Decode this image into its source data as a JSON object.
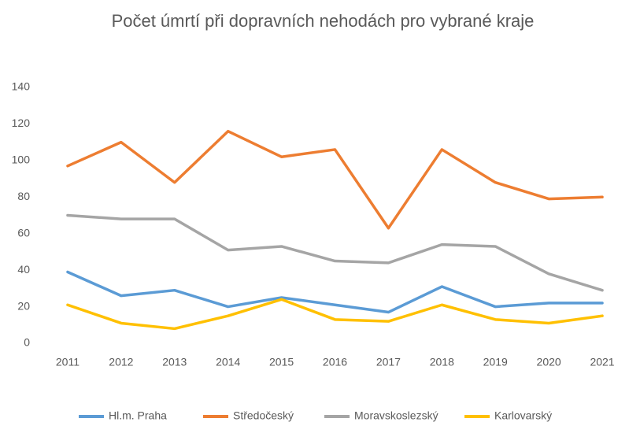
{
  "chart_data": {
    "type": "line",
    "title": "Počet úmrtí při dopravních nehodách pro vybrané kraje",
    "categories": [
      "2011",
      "2012",
      "2013",
      "2014",
      "2015",
      "2016",
      "2017",
      "2018",
      "2019",
      "2020",
      "2021"
    ],
    "series": [
      {
        "name": "Hl.m. Praha",
        "color": "#5b9bd5",
        "values": [
          39,
          26,
          29,
          20,
          25,
          21,
          17,
          31,
          20,
          22,
          22
        ]
      },
      {
        "name": "Středočeský",
        "color": "#ed7d31",
        "values": [
          97,
          110,
          88,
          116,
          102,
          106,
          63,
          106,
          88,
          79,
          80
        ]
      },
      {
        "name": "Moravskoslezský",
        "color": "#a5a5a5",
        "values": [
          70,
          68,
          68,
          51,
          53,
          45,
          44,
          54,
          53,
          38,
          29
        ]
      },
      {
        "name": "Karlovarský",
        "color": "#ffc000",
        "values": [
          21,
          11,
          8,
          15,
          24,
          13,
          12,
          21,
          13,
          11,
          15
        ]
      }
    ],
    "ylim": [
      0,
      140
    ],
    "yticks": [
      0,
      20,
      40,
      60,
      80,
      100,
      120,
      140
    ],
    "grid": false,
    "legend": "bottom"
  }
}
